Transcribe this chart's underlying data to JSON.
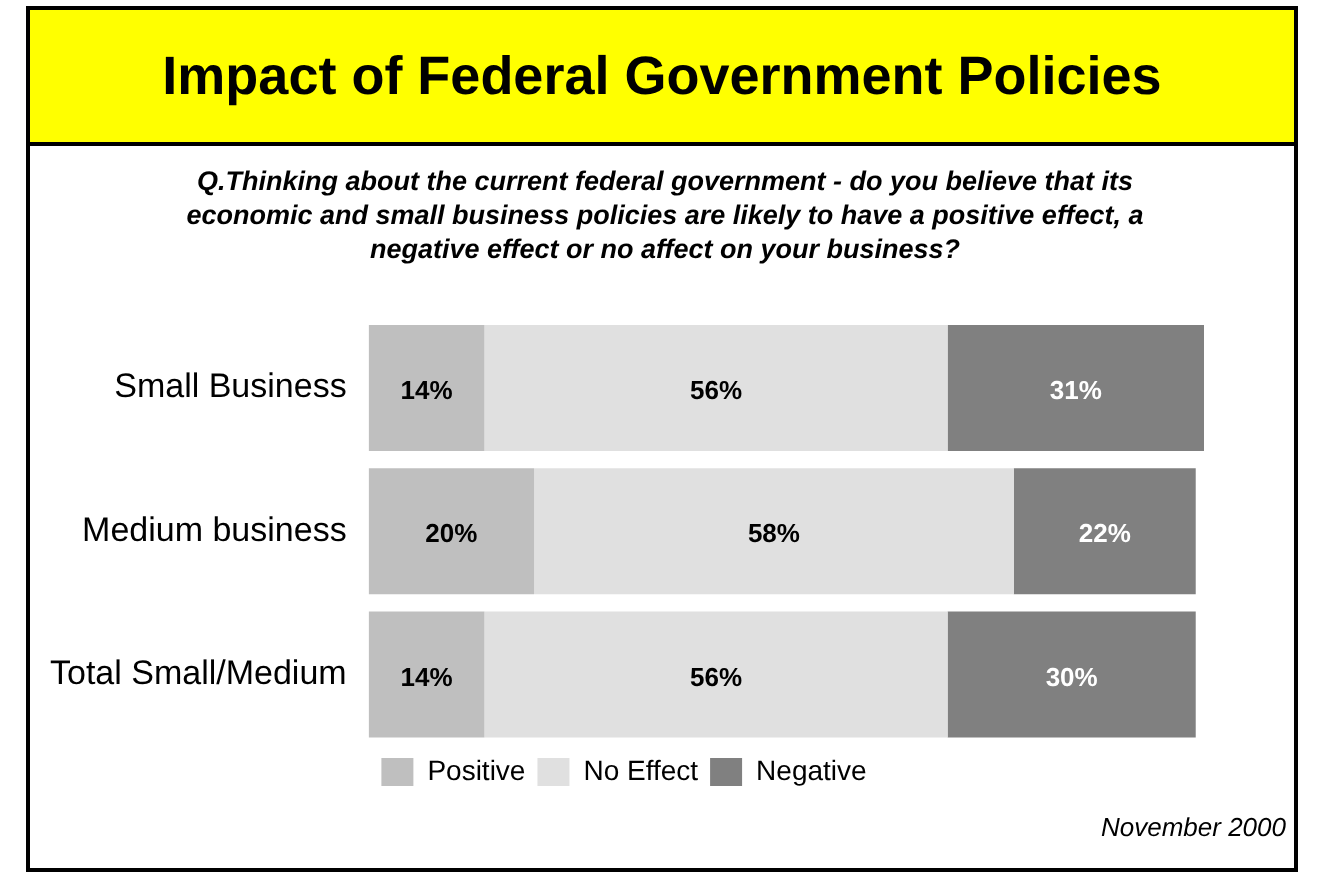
{
  "chart_data": {
    "type": "bar",
    "orientation": "horizontal",
    "stacked": true,
    "title": "Impact of Federal Government Policies",
    "subtitle": "Q.Thinking about the current federal government - do you believe that its economic and small business policies are likely to have a positive effect, a negative effect or no affect on your business?",
    "categories": [
      "Small Business",
      "Medium business",
      "Total Small/Medium"
    ],
    "series": [
      {
        "name": "Positive",
        "color": "#bfbfbf",
        "values": [
          14,
          20,
          14
        ],
        "value_labels": [
          "14%",
          "20%",
          "14%"
        ]
      },
      {
        "name": "No Effect",
        "color": "#e0e0e0",
        "values": [
          56,
          58,
          56
        ],
        "value_labels": [
          "56%",
          "58%",
          "56%"
        ]
      },
      {
        "name": "Negative",
        "color": "#808080",
        "values": [
          31,
          22,
          30
        ],
        "value_labels": [
          "31%",
          "22%",
          "30%"
        ]
      }
    ],
    "legend": "bottom",
    "annotations": [
      "November 2000"
    ]
  }
}
